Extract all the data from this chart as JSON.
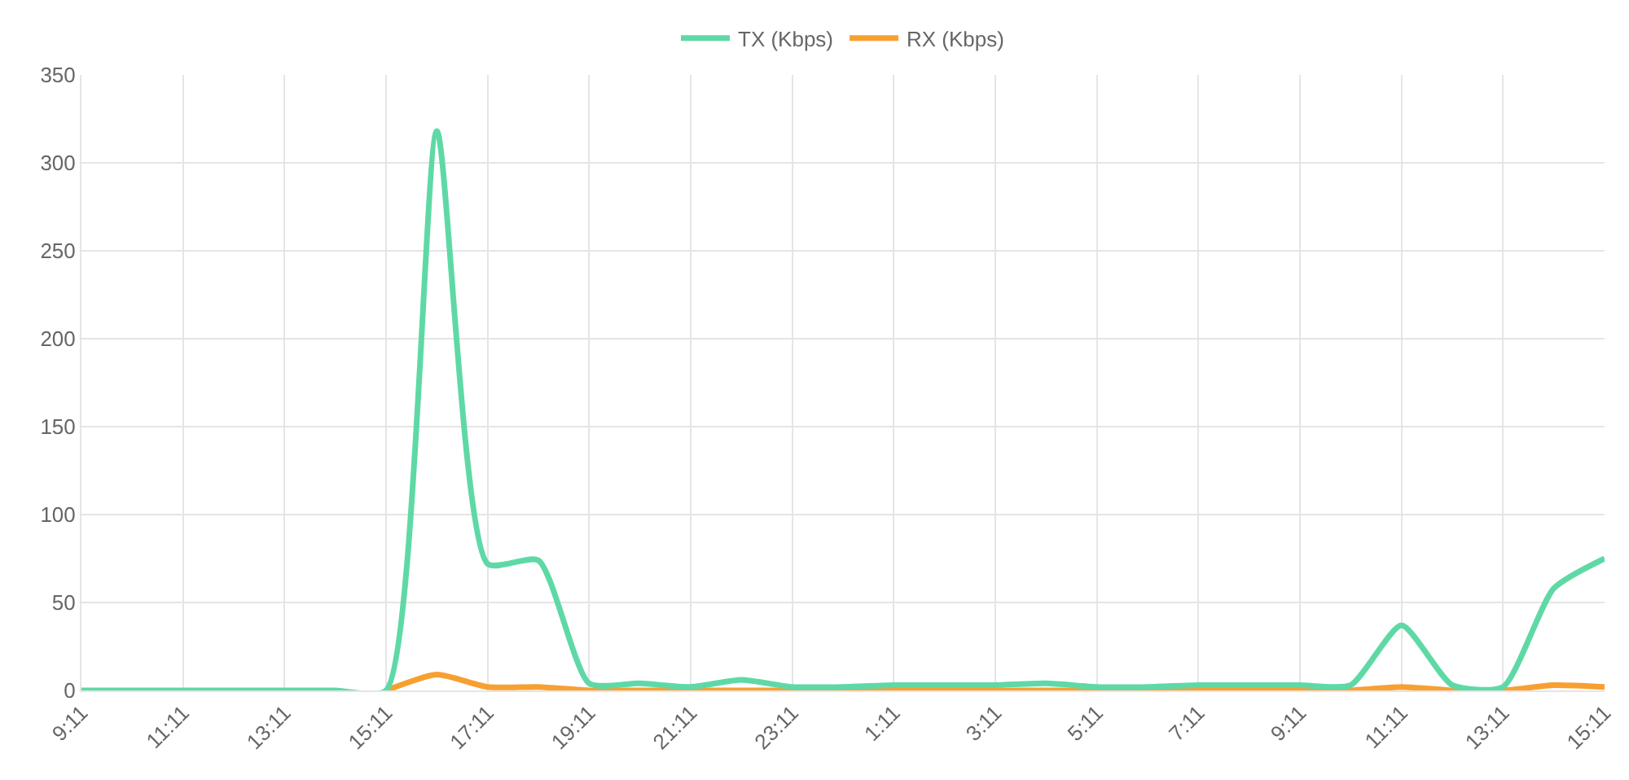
{
  "chart_data": {
    "type": "line",
    "categories": [
      "9:11",
      null,
      "11:11",
      null,
      "13:11",
      null,
      "15:11",
      null,
      "17:11",
      null,
      "19:11",
      null,
      "21:11",
      null,
      "23:11",
      null,
      "1:11",
      null,
      "3:11",
      null,
      "5:11",
      null,
      "7:11",
      null,
      "9:11",
      null,
      "11:11",
      null,
      "13:11",
      null,
      "15:11"
    ],
    "series": [
      {
        "name": "TX (Kbps)",
        "color": "#5ed9a6",
        "values": [
          0,
          0,
          0,
          0,
          0,
          0,
          0,
          318,
          72,
          74,
          4,
          4,
          2,
          6,
          2,
          2,
          3,
          3,
          3,
          4,
          2,
          2,
          3,
          3,
          3,
          3,
          37,
          3,
          2,
          58,
          75
        ]
      },
      {
        "name": "RX (Kbps)",
        "color": "#f7a030",
        "values": [
          null,
          null,
          null,
          null,
          null,
          null,
          0,
          9,
          2,
          2,
          0,
          0,
          0,
          0,
          0,
          0,
          0,
          0,
          0,
          0,
          0,
          0,
          0,
          0,
          0,
          0,
          2,
          0,
          0,
          3,
          2
        ]
      }
    ],
    "ylim": [
      0,
      350
    ],
    "yticks": [
      0,
      50,
      100,
      150,
      200,
      250,
      300,
      350
    ],
    "grid": true,
    "legend": "top",
    "marker": "none",
    "line_style": "solid"
  }
}
